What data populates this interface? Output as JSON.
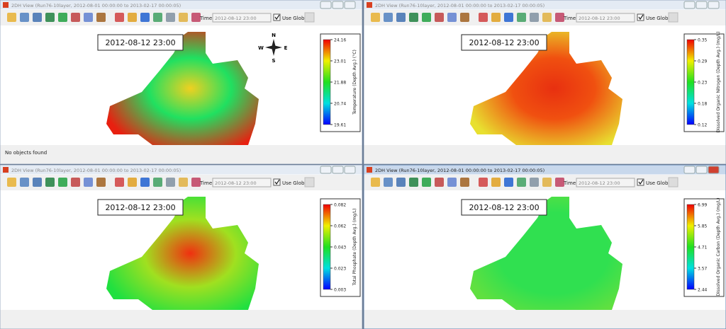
{
  "windows": [
    {
      "title": "2DH View (Run76-10layer, 2012-08-01 00:00:00 to 2013-02-17 00:00:05)",
      "time_label": "Time:",
      "time_value": "2012-08-12 23:00",
      "use_global": "Use Global",
      "timestamp": "2012-08-12 23:00",
      "status": "No objects found",
      "compass": [
        "N",
        "E",
        "S",
        "W"
      ],
      "colorbar": {
        "label": "Temperature (Depth Avg.) (°C)",
        "ticks": [
          "24.16",
          "23.01",
          "21.88",
          "20.74",
          "19.61"
        ]
      }
    },
    {
      "title": "2DH View (Run76-10layer, 2012-08-01 00:00:00 to 2013-02-17 00:00:05)",
      "time_label": "Time:",
      "time_value": "2012-08-12 23:00",
      "use_global": "Use Global",
      "timestamp": "2012-08-12 23:00",
      "colorbar": {
        "label": "Dissolved Organic Nitrogen (Depth Avg.) (mg/L)",
        "ticks": [
          "0.35",
          "0.29",
          "0.23",
          "0.18",
          "0.12"
        ]
      }
    },
    {
      "title": "2DH View (Run76-10layer, 2012-08-01 00:00:00 to 2013-02-17 00:00:05)",
      "time_label": "Time:",
      "time_value": "2012-08-12 23:00",
      "use_global": "Use Global",
      "timestamp": "2012-08-12 23:00",
      "colorbar": {
        "label": "Total Phosphate (Depth Avg.) (mg/L)",
        "ticks": [
          "0.082",
          "0.062",
          "0.043",
          "0.023",
          "0.003"
        ]
      }
    },
    {
      "title": "2DH View (Run76-10layer, 2012-08-01 00:00:00 to 2013-02-17 00:00:05)",
      "time_label": "Time:",
      "time_value": "2012-08-12 23:00",
      "use_global": "Use Global",
      "timestamp": "2012-08-12 23:00",
      "colorbar": {
        "label": "Dissolved Organic Carbon (Depth Avg.) (mg/L)",
        "ticks": [
          "6.99",
          "5.85",
          "4.71",
          "3.57",
          "2.44"
        ]
      }
    }
  ]
}
